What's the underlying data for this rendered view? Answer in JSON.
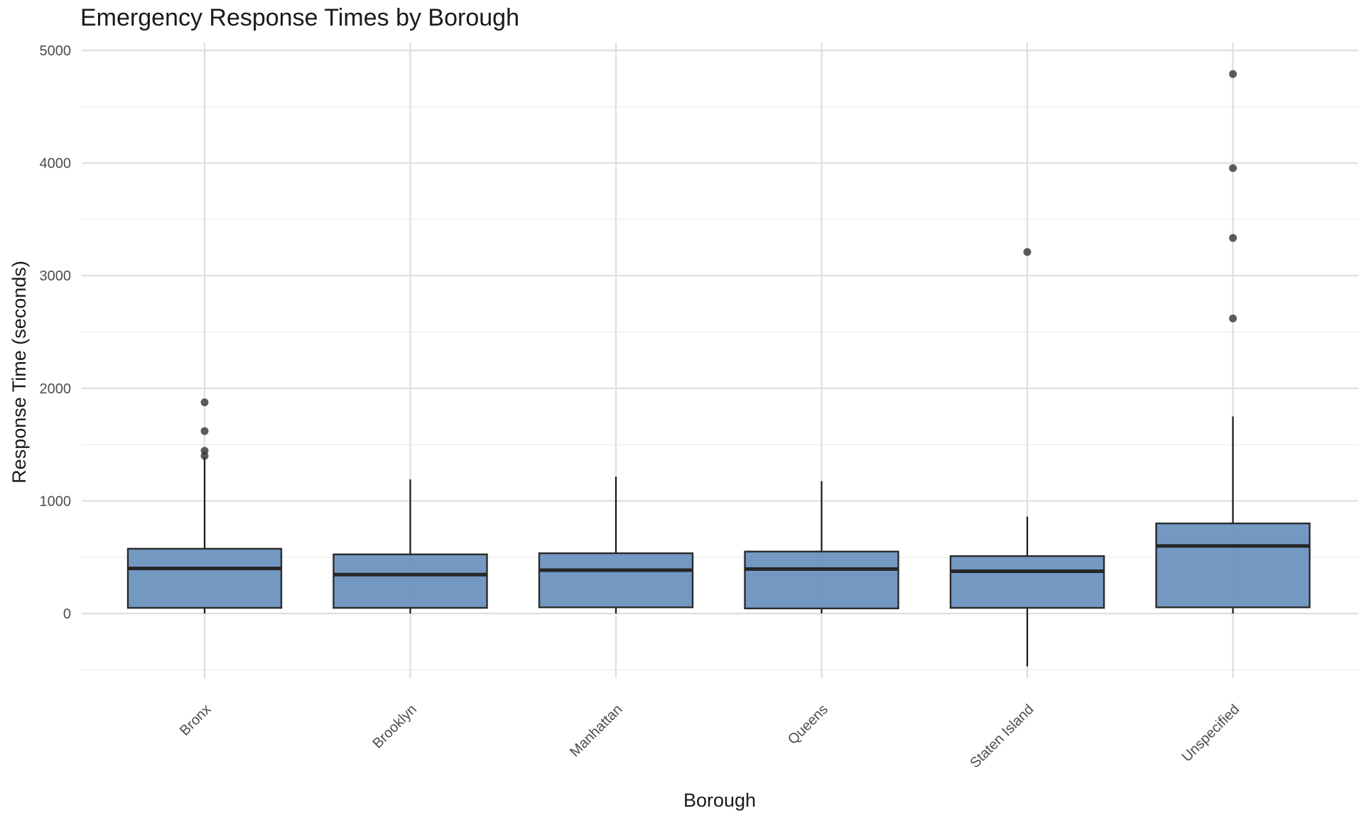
{
  "chart_data": {
    "type": "box",
    "title": "Emergency Response Times by Borough",
    "xlabel": "Borough",
    "ylabel": "Response Time (seconds)",
    "ylim": [
      -500,
      5000
    ],
    "yticks": [
      0,
      1000,
      2000,
      3000,
      4000,
      5000
    ],
    "grid": true,
    "box_color": "#6b93c0",
    "categories": [
      "Bronx",
      "Brooklyn",
      "Manhattan",
      "Queens",
      "Staten Island",
      "Unspecified"
    ],
    "boxes": [
      {
        "category": "Bronx",
        "whisker_low": 0,
        "q1": 50,
        "median": 400,
        "q3": 575,
        "whisker_high": 1390,
        "outliers": [
          1400,
          1445,
          1620,
          1875
        ]
      },
      {
        "category": "Brooklyn",
        "whisker_low": 0,
        "q1": 50,
        "median": 345,
        "q3": 525,
        "whisker_high": 1190,
        "outliers": []
      },
      {
        "category": "Manhattan",
        "whisker_low": 0,
        "q1": 55,
        "median": 385,
        "q3": 535,
        "whisker_high": 1215,
        "outliers": []
      },
      {
        "category": "Queens",
        "whisker_low": 0,
        "q1": 45,
        "median": 395,
        "q3": 550,
        "whisker_high": 1175,
        "outliers": []
      },
      {
        "category": "Staten Island",
        "whisker_low": -470,
        "q1": 50,
        "median": 375,
        "q3": 510,
        "whisker_high": 860,
        "outliers": [
          3210
        ]
      },
      {
        "category": "Unspecified",
        "whisker_low": 0,
        "q1": 55,
        "median": 600,
        "q3": 800,
        "whisker_high": 1750,
        "outliers": [
          2620,
          3335,
          3955,
          4790
        ]
      }
    ]
  }
}
